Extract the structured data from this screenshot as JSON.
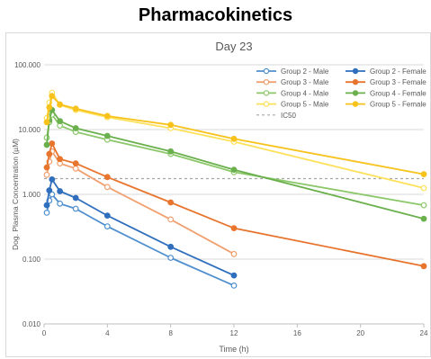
{
  "heading": "Pharmacokinetics",
  "chart_data": {
    "type": "line",
    "title": "Day 23",
    "xlabel": "Time (h)",
    "ylabel": "Dog. Plasma Concentration (µM)",
    "y_scale": "log",
    "xlim": [
      0,
      24
    ],
    "ylim": [
      0.01,
      100
    ],
    "x_ticks": [
      "0",
      "4",
      "8",
      "12",
      "16",
      "20",
      "24"
    ],
    "y_ticks": [
      "0.010",
      "0.100",
      "1.000",
      "10.000",
      "100.000"
    ],
    "grid": "horizontal",
    "legend_position": "top-right",
    "reference_line": {
      "name": "IC50",
      "value": 1.75,
      "color": "#a6a6a6"
    },
    "series": [
      {
        "name": "Group 2 - Male",
        "color": "#4f8fcf",
        "marker": "open",
        "x": [
          0.17,
          0.33,
          0.5,
          1,
          2,
          4,
          8,
          12
        ],
        "y": [
          0.52,
          0.8,
          1.0,
          0.72,
          0.6,
          0.32,
          0.105,
          0.039
        ]
      },
      {
        "name": "Group 2 - Female",
        "color": "#2f6fbd",
        "marker": "filled",
        "x": [
          0.17,
          0.33,
          0.5,
          1,
          2,
          4,
          8,
          12
        ],
        "y": [
          0.68,
          1.15,
          1.7,
          1.12,
          0.88,
          0.47,
          0.155,
          0.056
        ]
      },
      {
        "name": "Group 3 - Male",
        "color": "#f0a070",
        "marker": "open",
        "x": [
          0.17,
          0.33,
          0.5,
          1,
          2,
          4,
          8,
          12
        ],
        "y": [
          2.0,
          3.2,
          4.6,
          3.0,
          2.5,
          1.3,
          0.41,
          0.12
        ]
      },
      {
        "name": "Group 3 - Female",
        "color": "#e8752e",
        "marker": "filled",
        "x": [
          0.17,
          0.33,
          0.5,
          1,
          2,
          4,
          8,
          12,
          24
        ],
        "y": [
          2.6,
          4.2,
          6.1,
          3.5,
          3.0,
          1.85,
          0.75,
          0.3,
          0.078
        ]
      },
      {
        "name": "Group 4 - Male",
        "color": "#8cc86a",
        "marker": "open",
        "x": [
          0.17,
          0.33,
          0.5,
          1,
          2,
          4,
          8,
          12,
          24
        ],
        "y": [
          7.5,
          13.0,
          17.0,
          11.5,
          9.2,
          7.0,
          4.2,
          2.2,
          0.68
        ]
      },
      {
        "name": "Group 4 - Female",
        "color": "#6ab04c",
        "marker": "filled",
        "x": [
          0.17,
          0.33,
          0.5,
          1,
          2,
          4,
          8,
          12,
          24
        ],
        "y": [
          5.8,
          14.0,
          20.0,
          13.5,
          10.5,
          8.0,
          4.6,
          2.4,
          0.42
        ]
      },
      {
        "name": "Group 5 - Male",
        "color": "#fde15a",
        "marker": "open",
        "x": [
          0.17,
          0.33,
          0.5,
          1,
          2,
          4,
          8,
          12,
          24
        ],
        "y": [
          15.0,
          26.0,
          37.0,
          24.0,
          20.0,
          15.5,
          10.5,
          6.5,
          1.25
        ]
      },
      {
        "name": "Group 5 - Female",
        "color": "#f8c21c",
        "marker": "filled",
        "x": [
          0.17,
          0.33,
          0.5,
          1,
          2,
          4,
          8,
          12,
          24
        ],
        "y": [
          13.0,
          22.0,
          33.0,
          24.5,
          21.0,
          16.2,
          11.8,
          7.2,
          2.05
        ]
      }
    ]
  }
}
